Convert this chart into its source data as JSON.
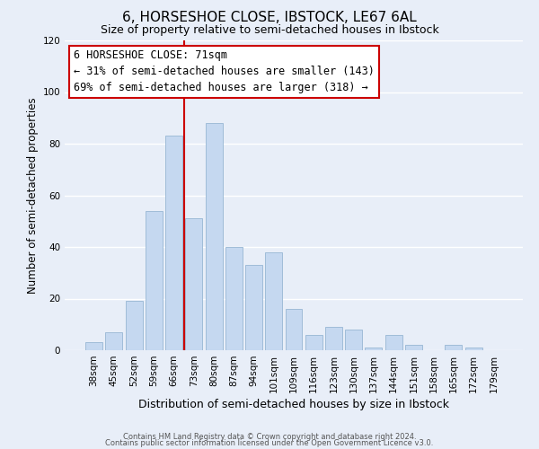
{
  "title": "6, HORSESHOE CLOSE, IBSTOCK, LE67 6AL",
  "subtitle": "Size of property relative to semi-detached houses in Ibstock",
  "xlabel": "Distribution of semi-detached houses by size in Ibstock",
  "ylabel": "Number of semi-detached properties",
  "categories": [
    "38sqm",
    "45sqm",
    "52sqm",
    "59sqm",
    "66sqm",
    "73sqm",
    "80sqm",
    "87sqm",
    "94sqm",
    "101sqm",
    "109sqm",
    "116sqm",
    "123sqm",
    "130sqm",
    "137sqm",
    "144sqm",
    "151sqm",
    "158sqm",
    "165sqm",
    "172sqm",
    "179sqm"
  ],
  "values": [
    3,
    7,
    19,
    54,
    83,
    51,
    88,
    40,
    33,
    38,
    16,
    6,
    9,
    8,
    1,
    6,
    2,
    0,
    2,
    1,
    0
  ],
  "bar_color": "#c5d8f0",
  "bar_edge_color": "#a0bcd8",
  "marker_line_color": "#cc0000",
  "annotation_line1": "6 HORSESHOE CLOSE: 71sqm",
  "annotation_line2": "← 31% of semi-detached houses are smaller (143)",
  "annotation_line3": "69% of semi-detached houses are larger (318) →",
  "ylim": [
    0,
    120
  ],
  "yticks": [
    0,
    20,
    40,
    60,
    80,
    100,
    120
  ],
  "annotation_box_color": "#ffffff",
  "annotation_box_edge": "#cc0000",
  "footer1": "Contains HM Land Registry data © Crown copyright and database right 2024.",
  "footer2": "Contains public sector information licensed under the Open Government Licence v3.0.",
  "background_color": "#e8eef8",
  "grid_color": "#ffffff",
  "title_fontsize": 11,
  "subtitle_fontsize": 9,
  "tick_fontsize": 7.5,
  "ylabel_fontsize": 8.5,
  "xlabel_fontsize": 9,
  "footer_fontsize": 6,
  "annotation_fontsize": 8.5
}
